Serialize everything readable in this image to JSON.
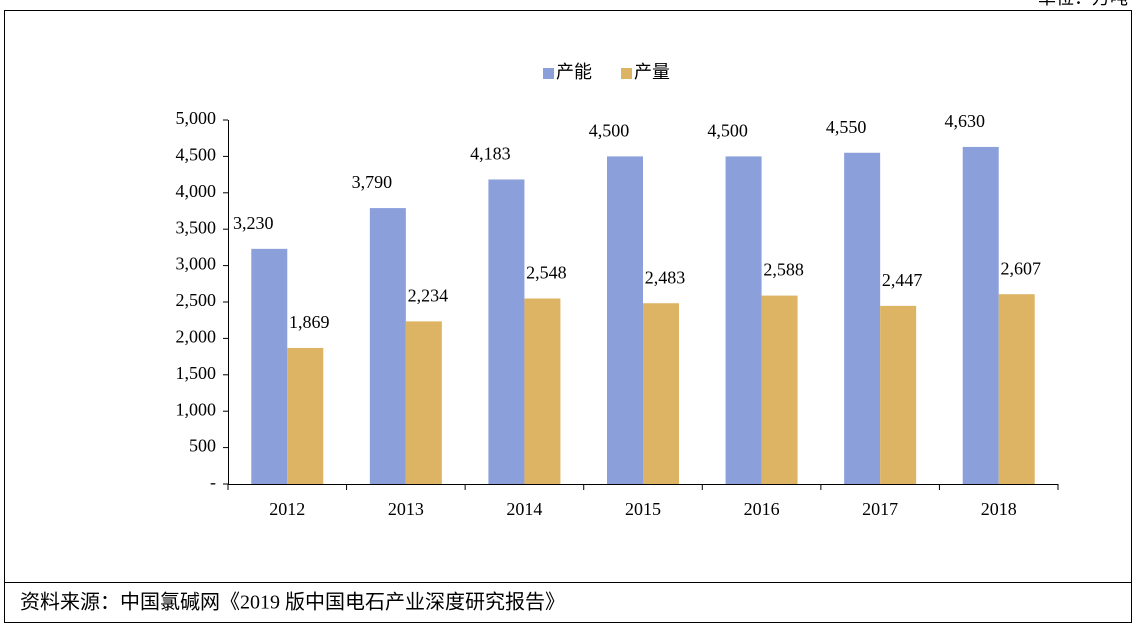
{
  "unit": "单位：万吨",
  "source": "资料来源：中国氯碱网《2019 版中国电石产业深度研究报告》",
  "chart_data": {
    "type": "bar",
    "categories": [
      "2012",
      "2013",
      "2014",
      "2015",
      "2016",
      "2017",
      "2018"
    ],
    "series": [
      {
        "name": "产能",
        "color": "#8b9fdb",
        "values": [
          3230,
          3790,
          4183,
          4500,
          4500,
          4550,
          4630
        ],
        "value_labels": [
          "3,230",
          "3,790",
          "4,183",
          "4,500",
          "4,500",
          "4,550",
          "4,630"
        ]
      },
      {
        "name": "产量",
        "color": "#ddb464",
        "values": [
          1869,
          2234,
          2548,
          2483,
          2588,
          2447,
          2607
        ],
        "value_labels": [
          "1,869",
          "2,234",
          "2,548",
          "2,483",
          "2,588",
          "2,447",
          "2,607"
        ]
      }
    ],
    "ylim": [
      0,
      5000
    ],
    "yticks": [
      {
        "value": 0,
        "label": "-"
      },
      500,
      {
        "value": 1000,
        "label": "1,000"
      },
      {
        "value": 1500,
        "label": "1,500"
      },
      {
        "value": 2000,
        "label": "2,000"
      },
      {
        "value": 2500,
        "label": "2,500"
      },
      {
        "value": 3000,
        "label": "3,000"
      },
      {
        "value": 3500,
        "label": "3,500"
      },
      {
        "value": 4000,
        "label": "4,000"
      },
      {
        "value": 4500,
        "label": "4,500"
      },
      {
        "value": 5000,
        "label": "5,000"
      }
    ],
    "legend": "top",
    "grid": false
  }
}
